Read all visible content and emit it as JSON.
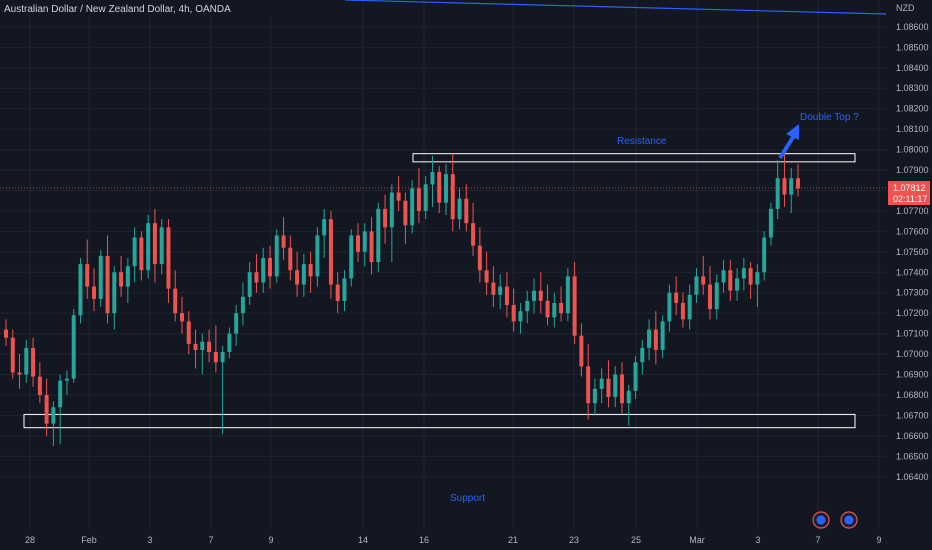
{
  "header": {
    "title": "Australian Dollar / New Zealand Dollar, 4h, OANDA"
  },
  "chart_data": {
    "type": "candlestick",
    "title": "Australian Dollar / New Zealand Dollar, 4h, OANDA",
    "ylabel": "NZD",
    "ylim": [
      1.0635,
      1.087
    ],
    "yticks": [
      "1.08600",
      "1.08500",
      "1.08400",
      "1.08300",
      "1.08200",
      "1.08100",
      "1.08000",
      "1.07900",
      "1.07800",
      "1.07700",
      "1.07600",
      "1.07500",
      "1.07400",
      "1.07300",
      "1.07200",
      "1.07100",
      "1.07000",
      "1.06900",
      "1.06800",
      "1.06700",
      "1.06600",
      "1.06500",
      "1.06400"
    ],
    "xticks": [
      "28",
      "Feb",
      "3",
      "7",
      "9",
      "14",
      "16",
      "21",
      "23",
      "25",
      "Mar",
      "3",
      "7",
      "9"
    ],
    "grid": true,
    "colors": {
      "up": "#26a69a",
      "down": "#ef5350",
      "background": "#131722",
      "grid": "#1f2431",
      "annotation": "#2962ff",
      "box": "#ffffff"
    },
    "last_price": "1.07812",
    "countdown": "02:11:17",
    "annotations": {
      "resistance": "Resistance",
      "support": "Support",
      "double_top": "Double Top ?"
    },
    "zones": [
      {
        "name": "resistance-zone",
        "from": 1.0794,
        "to": 1.0798
      },
      {
        "name": "support-zone",
        "from": 1.0664,
        "to": 1.06705
      }
    ],
    "trendline": {
      "from": 1.0869,
      "to": 1.0865
    },
    "candles": [
      [
        1.0712,
        1.0717,
        1.0704,
        1.0708
      ],
      [
        1.0708,
        1.0712,
        1.0688,
        1.0691
      ],
      [
        1.0691,
        1.07,
        1.0683,
        1.069
      ],
      [
        1.069,
        1.0707,
        1.0686,
        1.0703
      ],
      [
        1.0703,
        1.0708,
        1.0684,
        1.0689
      ],
      [
        1.0689,
        1.0696,
        1.0676,
        1.068
      ],
      [
        1.068,
        1.0688,
        1.066,
        1.0666
      ],
      [
        1.0666,
        1.0677,
        1.0655,
        1.0674
      ],
      [
        1.0674,
        1.069,
        1.0656,
        1.0687
      ],
      [
        1.0687,
        1.0692,
        1.068,
        1.0688
      ],
      [
        1.0688,
        1.0722,
        1.0686,
        1.0719
      ],
      [
        1.0719,
        1.0747,
        1.0715,
        1.0744
      ],
      [
        1.0744,
        1.0756,
        1.0727,
        1.0733
      ],
      [
        1.0733,
        1.0742,
        1.0721,
        1.0727
      ],
      [
        1.0727,
        1.0751,
        1.0723,
        1.0748
      ],
      [
        1.0748,
        1.0758,
        1.0715,
        1.072
      ],
      [
        1.072,
        1.0743,
        1.0712,
        1.074
      ],
      [
        1.074,
        1.0748,
        1.0728,
        1.0733
      ],
      [
        1.0733,
        1.0747,
        1.0725,
        1.0743
      ],
      [
        1.0743,
        1.0762,
        1.0735,
        1.0757
      ],
      [
        1.0757,
        1.076,
        1.0736,
        1.0741
      ],
      [
        1.0741,
        1.0768,
        1.0737,
        1.0764
      ],
      [
        1.0764,
        1.0771,
        1.0735,
        1.0744
      ],
      [
        1.0744,
        1.0766,
        1.0739,
        1.0762
      ],
      [
        1.0762,
        1.0766,
        1.0725,
        1.0732
      ],
      [
        1.0732,
        1.0741,
        1.0716,
        1.072
      ],
      [
        1.072,
        1.0728,
        1.071,
        1.0716
      ],
      [
        1.0716,
        1.0721,
        1.07,
        1.0705
      ],
      [
        1.0705,
        1.0712,
        1.0693,
        1.0702
      ],
      [
        1.0702,
        1.071,
        1.069,
        1.0706
      ],
      [
        1.0706,
        1.0712,
        1.0696,
        1.0701
      ],
      [
        1.0701,
        1.0714,
        1.0691,
        1.0696
      ],
      [
        1.0696,
        1.0704,
        1.0661,
        1.0701
      ],
      [
        1.0701,
        1.0713,
        1.0698,
        1.071
      ],
      [
        1.071,
        1.0724,
        1.0704,
        1.072
      ],
      [
        1.072,
        1.0735,
        1.0714,
        1.0728
      ],
      [
        1.0728,
        1.0745,
        1.0724,
        1.074
      ],
      [
        1.074,
        1.0749,
        1.073,
        1.0735
      ],
      [
        1.0735,
        1.0752,
        1.073,
        1.0747
      ],
      [
        1.0747,
        1.0753,
        1.0732,
        1.0738
      ],
      [
        1.0738,
        1.0761,
        1.0735,
        1.0758
      ],
      [
        1.0758,
        1.0767,
        1.0746,
        1.0752
      ],
      [
        1.0752,
        1.0758,
        1.0736,
        1.0741
      ],
      [
        1.0741,
        1.075,
        1.0728,
        1.0734
      ],
      [
        1.0734,
        1.0749,
        1.0728,
        1.0744
      ],
      [
        1.0744,
        1.075,
        1.073,
        1.0738
      ],
      [
        1.0738,
        1.0762,
        1.0733,
        1.0758
      ],
      [
        1.0758,
        1.0771,
        1.0747,
        1.0766
      ],
      [
        1.0766,
        1.077,
        1.0727,
        1.0734
      ],
      [
        1.0734,
        1.074,
        1.072,
        1.0726
      ],
      [
        1.0726,
        1.0741,
        1.0721,
        1.0737
      ],
      [
        1.0737,
        1.0761,
        1.0733,
        1.0758
      ],
      [
        1.0758,
        1.0764,
        1.0745,
        1.075
      ],
      [
        1.075,
        1.0764,
        1.0743,
        1.076
      ],
      [
        1.076,
        1.0767,
        1.0739,
        1.0745
      ],
      [
        1.0745,
        1.0774,
        1.074,
        1.0771
      ],
      [
        1.0771,
        1.0778,
        1.0754,
        1.0762
      ],
      [
        1.0762,
        1.0783,
        1.0745,
        1.0779
      ],
      [
        1.0779,
        1.0787,
        1.077,
        1.0775
      ],
      [
        1.0775,
        1.0779,
        1.0754,
        1.0763
      ],
      [
        1.0763,
        1.0785,
        1.0759,
        1.0781
      ],
      [
        1.0781,
        1.0791,
        1.0764,
        1.077
      ],
      [
        1.077,
        1.0787,
        1.0766,
        1.0783
      ],
      [
        1.0783,
        1.0797,
        1.0772,
        1.0789
      ],
      [
        1.0789,
        1.0792,
        1.0769,
        1.0774
      ],
      [
        1.0774,
        1.0793,
        1.0768,
        1.0788
      ],
      [
        1.0788,
        1.0798,
        1.076,
        1.0766
      ],
      [
        1.0766,
        1.0781,
        1.0761,
        1.0776
      ],
      [
        1.0776,
        1.0783,
        1.076,
        1.0764
      ],
      [
        1.0764,
        1.0774,
        1.0748,
        1.0753
      ],
      [
        1.0753,
        1.0762,
        1.0735,
        1.0741
      ],
      [
        1.0741,
        1.075,
        1.0729,
        1.0735
      ],
      [
        1.0735,
        1.0743,
        1.0723,
        1.0729
      ],
      [
        1.0729,
        1.0739,
        1.0722,
        1.0733
      ],
      [
        1.0733,
        1.074,
        1.0718,
        1.0724
      ],
      [
        1.0724,
        1.0732,
        1.0711,
        1.0716
      ],
      [
        1.0716,
        1.0725,
        1.071,
        1.0721
      ],
      [
        1.0721,
        1.0731,
        1.0715,
        1.0726
      ],
      [
        1.0726,
        1.0737,
        1.072,
        1.0731
      ],
      [
        1.0731,
        1.074,
        1.072,
        1.0726
      ],
      [
        1.0726,
        1.0734,
        1.0714,
        1.0718
      ],
      [
        1.0718,
        1.073,
        1.0713,
        1.0725
      ],
      [
        1.0725,
        1.0733,
        1.0716,
        1.072
      ],
      [
        1.072,
        1.0742,
        1.0716,
        1.0738
      ],
      [
        1.0738,
        1.0745,
        1.0705,
        1.0709
      ],
      [
        1.0709,
        1.0715,
        1.0689,
        1.0694
      ],
      [
        1.0694,
        1.0705,
        1.0668,
        1.0676
      ],
      [
        1.0676,
        1.0688,
        1.067,
        1.0683
      ],
      [
        1.0683,
        1.0693,
        1.0676,
        1.0688
      ],
      [
        1.0688,
        1.0697,
        1.0674,
        1.0679
      ],
      [
        1.0679,
        1.0694,
        1.0674,
        1.069
      ],
      [
        1.069,
        1.0696,
        1.0671,
        1.0676
      ],
      [
        1.0676,
        1.0685,
        1.0665,
        1.0682
      ],
      [
        1.0682,
        1.0699,
        1.0678,
        1.0696
      ],
      [
        1.0696,
        1.0707,
        1.069,
        1.0703
      ],
      [
        1.0703,
        1.0717,
        1.0697,
        1.0712
      ],
      [
        1.0712,
        1.0721,
        1.0695,
        1.0702
      ],
      [
        1.0702,
        1.0719,
        1.0698,
        1.0716
      ],
      [
        1.0716,
        1.0734,
        1.0711,
        1.073
      ],
      [
        1.073,
        1.0738,
        1.0719,
        1.0725
      ],
      [
        1.0725,
        1.073,
        1.0713,
        1.0717
      ],
      [
        1.0717,
        1.0734,
        1.0712,
        1.0729
      ],
      [
        1.0729,
        1.0742,
        1.0725,
        1.0738
      ],
      [
        1.0738,
        1.0748,
        1.0729,
        1.0734
      ],
      [
        1.0734,
        1.0743,
        1.0717,
        1.0722
      ],
      [
        1.0722,
        1.0739,
        1.0717,
        1.0735
      ],
      [
        1.0735,
        1.0746,
        1.073,
        1.0741
      ],
      [
        1.0741,
        1.0746,
        1.0726,
        1.0731
      ],
      [
        1.0731,
        1.0742,
        1.0726,
        1.0737
      ],
      [
        1.0737,
        1.0747,
        1.0731,
        1.0742
      ],
      [
        1.0742,
        1.0745,
        1.0727,
        1.0734
      ],
      [
        1.0734,
        1.0744,
        1.0723,
        1.074
      ],
      [
        1.074,
        1.076,
        1.0736,
        1.0757
      ],
      [
        1.0757,
        1.0774,
        1.0753,
        1.0771
      ],
      [
        1.0771,
        1.0795,
        1.0766,
        1.0786
      ],
      [
        1.0786,
        1.0799,
        1.0772,
        1.0778
      ],
      [
        1.0778,
        1.0791,
        1.0769,
        1.0786
      ],
      [
        1.0786,
        1.0793,
        1.0777,
        1.0781
      ]
    ]
  }
}
